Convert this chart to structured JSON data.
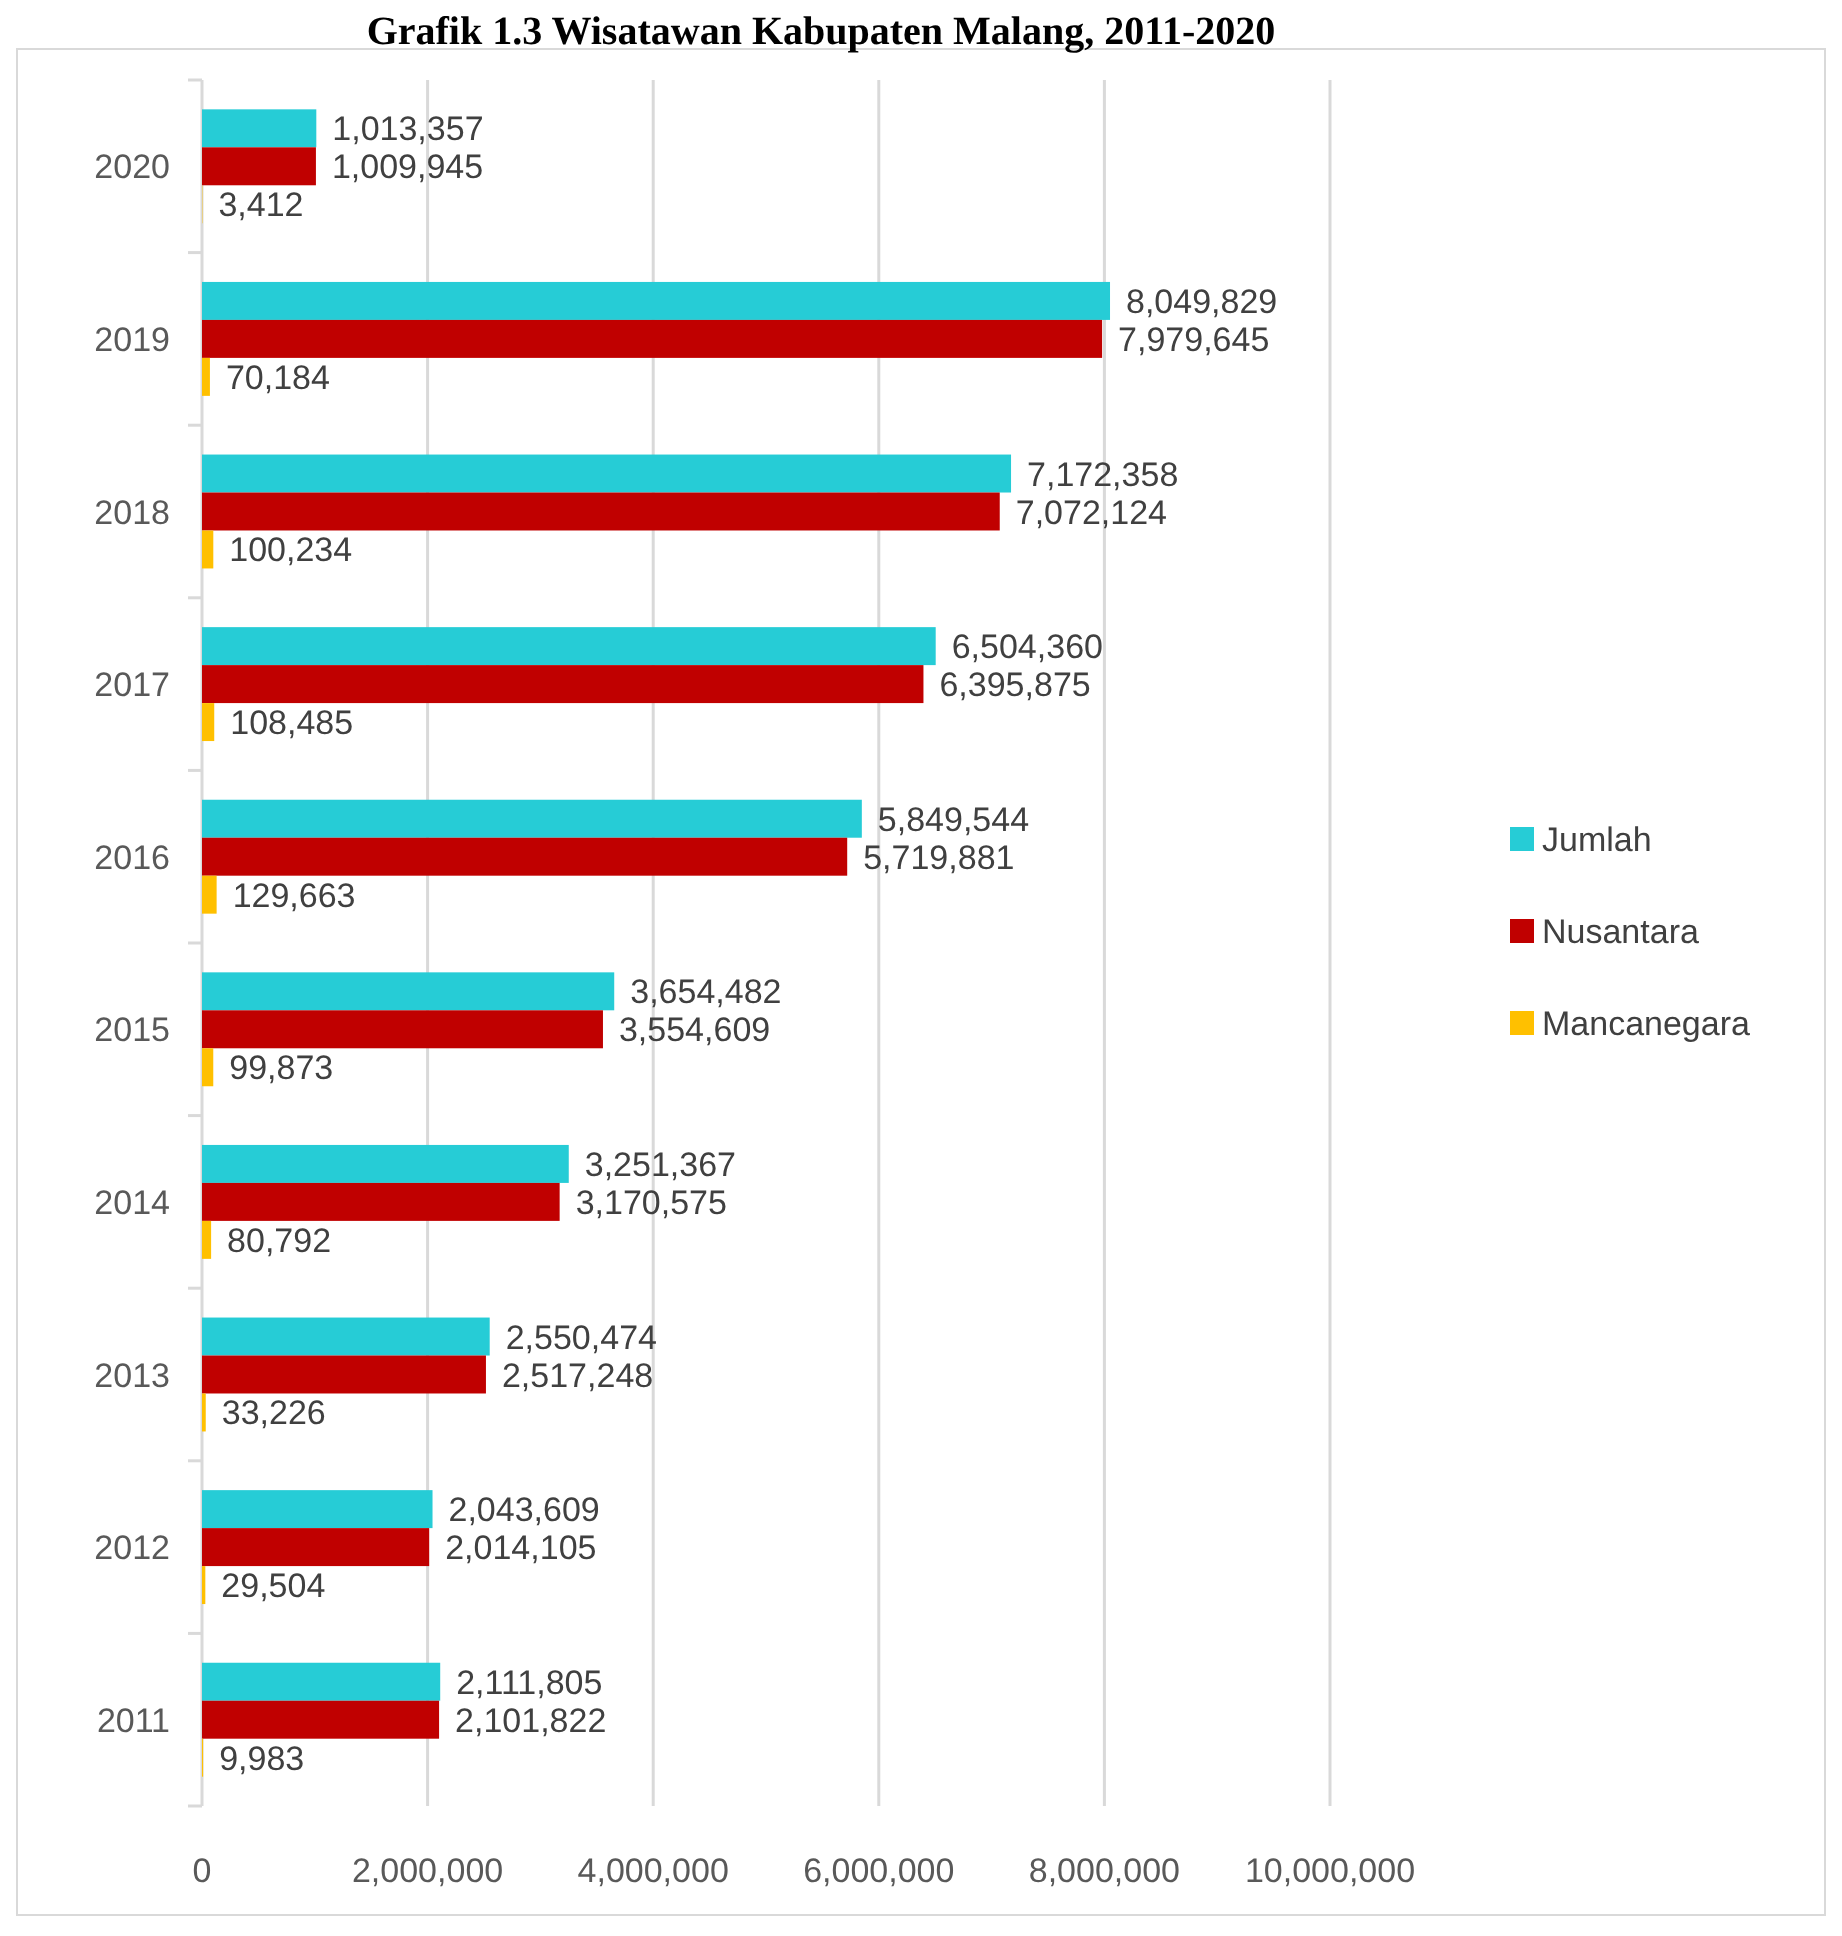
{
  "chart_data": {
    "type": "bar",
    "orientation": "horizontal",
    "title": "Grafik 1.3 Wisatawan Kabupaten Malang, 2011-2020",
    "categories": [
      "2020",
      "2019",
      "2018",
      "2017",
      "2016",
      "2015",
      "2014",
      "2013",
      "2012",
      "2011"
    ],
    "series": [
      {
        "name": "Jumlah",
        "color": "#26ccd6",
        "values": [
          1013357,
          8049829,
          7172358,
          6504360,
          5849544,
          3654482,
          3251367,
          2550474,
          2043609,
          2111805
        ],
        "value_labels": [
          "1,013,357",
          "8,049,829",
          "7,172,358",
          "6,504,360",
          "5,849,544",
          "3,654,482",
          "3,251,367",
          "2,550,474",
          "2,043,609",
          "2,111,805"
        ]
      },
      {
        "name": "Nusantara",
        "color": "#c00000",
        "values": [
          1009945,
          7979645,
          7072124,
          6395875,
          5719881,
          3554609,
          3170575,
          2517248,
          2014105,
          2101822
        ],
        "value_labels": [
          "1,009,945",
          "7,979,645",
          "7,072,124",
          "6,395,875",
          "5,719,881",
          "3,554,609",
          "3,170,575",
          "2,517,248",
          "2,014,105",
          "2,101,822"
        ]
      },
      {
        "name": "Mancanegara",
        "color": "#ffc000",
        "values": [
          3412,
          70184,
          100234,
          108485,
          129663,
          99873,
          80792,
          33226,
          29504,
          9983
        ],
        "value_labels": [
          "3,412",
          "70,184",
          "100,234",
          "108,485",
          "129,663",
          "99,873",
          "80,792",
          "33,226",
          "29,504",
          "9,983"
        ]
      }
    ],
    "xlim": [
      0,
      10000000
    ],
    "xticks": [
      {
        "value": 0,
        "label": "0"
      },
      {
        "value": 2000000,
        "label": "2,000,000"
      },
      {
        "value": 4000000,
        "label": "4,000,000"
      },
      {
        "value": 6000000,
        "label": "6,000,000"
      },
      {
        "value": 8000000,
        "label": "8,000,000"
      },
      {
        "value": 10000000,
        "label": "10,000,000"
      }
    ],
    "grid": "x",
    "legend": "right"
  }
}
